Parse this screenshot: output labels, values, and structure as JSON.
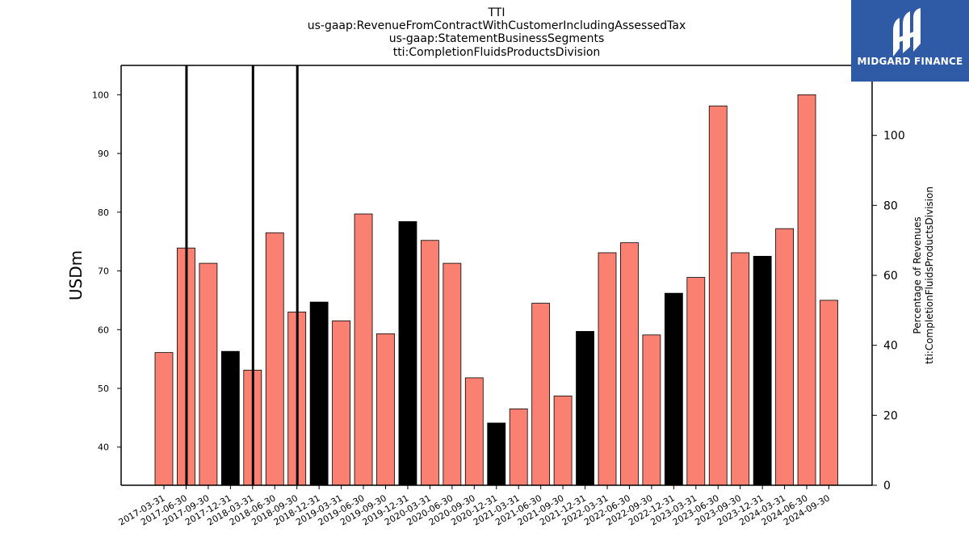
{
  "title_lines": [
    "TTI",
    "us-gaap:RevenueFromContractWithCustomerIncludingAssessedTax",
    "us-gaap:StatementBusinessSegments",
    "tti:CompletionFluidsProductsDivision"
  ],
  "logo": {
    "text": "MIDGARD FINANCE",
    "bg_color": "#2f5aa6"
  },
  "chart_data": {
    "type": "bar",
    "title": "TTI\nus-gaap:RevenueFromContractWithCustomerIncludingAssessedTax\nus-gaap:StatementBusinessSegments\ntti:CompletionFluidsProductsDivision",
    "ylabel": "USDm",
    "ylabel_right": [
      "Percentage of Revenues",
      "tti:CompletionFluidsProductsDivision"
    ],
    "categories": [
      "2017-03-31",
      "2017-06-30",
      "2017-09-30",
      "2017-12-31",
      "2018-03-31",
      "2018-06-30",
      "2018-09-30",
      "2018-12-31",
      "2019-03-31",
      "2019-06-30",
      "2019-09-30",
      "2019-12-31",
      "2020-03-31",
      "2020-06-30",
      "2020-09-30",
      "2020-12-31",
      "2021-03-31",
      "2021-06-30",
      "2021-09-30",
      "2021-12-31",
      "2022-03-31",
      "2022-06-30",
      "2022-09-30",
      "2022-12-31",
      "2023-03-31",
      "2023-06-30",
      "2023-09-30",
      "2023-12-31",
      "2024-03-31",
      "2024-06-30",
      "2024-09-30"
    ],
    "values": [
      56.1,
      73.9,
      71.3,
      56.3,
      53.1,
      76.5,
      63.0,
      64.7,
      61.5,
      79.7,
      59.3,
      78.4,
      75.2,
      71.3,
      51.8,
      44.1,
      46.5,
      64.5,
      48.7,
      59.7,
      73.1,
      74.8,
      59.1,
      66.2,
      68.9,
      98.1,
      73.1,
      72.5,
      77.2,
      100.0,
      65.0
    ],
    "bar_colors": [
      "#fa8072",
      "#fa8072",
      "#fa8072",
      "#000000",
      "#fa8072",
      "#fa8072",
      "#fa8072",
      "#000000",
      "#fa8072",
      "#fa8072",
      "#fa8072",
      "#000000",
      "#fa8072",
      "#fa8072",
      "#fa8072",
      "#000000",
      "#fa8072",
      "#fa8072",
      "#fa8072",
      "#000000",
      "#fa8072",
      "#fa8072",
      "#fa8072",
      "#000000",
      "#fa8072",
      "#fa8072",
      "#fa8072",
      "#000000",
      "#fa8072",
      "#fa8072",
      "#fa8072"
    ],
    "ylim": [
      33.5,
      105
    ],
    "yticks": [
      40,
      50,
      60,
      70,
      80,
      90,
      100
    ],
    "ylim_right": [
      0,
      120
    ],
    "yticks_right": [
      0,
      20,
      40,
      60,
      80,
      100
    ],
    "event_lines_at": [
      "2017-06-30",
      "2018-03-31",
      "2018-09-30"
    ],
    "colors": {
      "bar": "#fa8072",
      "bar_highlight": "#000000",
      "edge": "#000000"
    },
    "grid": false
  }
}
